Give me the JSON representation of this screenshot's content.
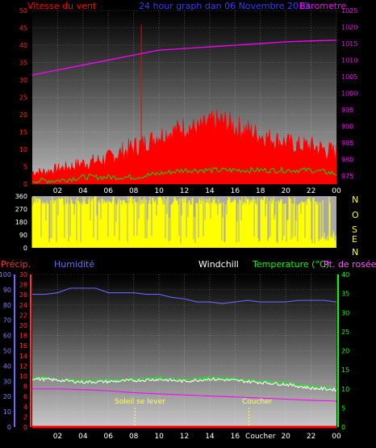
{
  "header": {
    "wind_label": "Vitesse du vent",
    "title": "24 hour graph dan   06 Novembre 2013",
    "baro_label": "Barometre"
  },
  "colors": {
    "wind": "#ff0000",
    "gust": "#ff0000",
    "wind_avg": "#00e000",
    "baro": "#ff00ff",
    "winddir": "#ffff00",
    "humidity": "#6666ff",
    "temperature": "#00ff00",
    "dewpoint": "#ff00ff",
    "windchill": "#ffffff",
    "precip": "#ff0000",
    "sun": "#ffff66"
  },
  "time_ticks": [
    "02",
    "04",
    "06",
    "08",
    "10",
    "12",
    "14",
    "16",
    "18",
    "20",
    "22",
    "00"
  ],
  "bottom_time_ticks": [
    "02",
    "04",
    "06",
    "08",
    "10",
    "12",
    "14",
    "16",
    "Coucher",
    "20",
    "22",
    "00"
  ],
  "labels": {
    "precip": "Précip.",
    "humidity": "Humidité",
    "windchill": "Windchill",
    "temperature": "Temperature (°C)",
    "dewpoint": "Pt. de rosée",
    "sunrise": "Soleil se lever",
    "sunset": "Coucher",
    "compass": [
      "N",
      "O",
      "S",
      "E",
      "N"
    ]
  },
  "chart_data": [
    {
      "type": "line",
      "title": "24 hour graph dan   06 Novembre 2013",
      "x_unit": "hour",
      "xlim": [
        0,
        24
      ],
      "y_left": {
        "label": "Vitesse du vent",
        "lim": [
          0,
          50
        ],
        "ticks": [
          0,
          5,
          10,
          15,
          20,
          25,
          30,
          35,
          40,
          45,
          50
        ]
      },
      "y_right": {
        "label": "Barometre",
        "lim": [
          972.5,
          1025
        ],
        "ticks": [
          975,
          980,
          985,
          990,
          995,
          1000,
          1005,
          1010,
          1015,
          1020,
          1025
        ]
      },
      "series": [
        {
          "name": "Vitesse du vent",
          "axis": "left",
          "x": [
            0,
            1,
            2,
            3,
            4,
            5,
            6,
            7,
            8,
            9,
            10,
            11,
            12,
            13,
            14,
            15,
            16,
            17,
            18,
            19,
            20,
            21,
            22,
            23,
            24
          ],
          "y": [
            2,
            2,
            3,
            3,
            4,
            4,
            5,
            6,
            7,
            9,
            11,
            12,
            13,
            13,
            14,
            14,
            13,
            12,
            11,
            10,
            9,
            8,
            8,
            7,
            6
          ],
          "gusts": [
            3,
            3,
            4,
            5,
            6,
            7,
            8,
            10,
            12,
            13,
            15,
            16,
            18,
            17,
            19,
            20,
            18,
            17,
            15,
            14,
            13,
            12,
            12,
            11,
            10
          ],
          "spike": {
            "x": 8.6,
            "y": 46
          }
        },
        {
          "name": "wind-avg",
          "axis": "left",
          "x": [
            0,
            2,
            4,
            6,
            8,
            10,
            12,
            14,
            16,
            18,
            20,
            22,
            24
          ],
          "y": [
            1,
            1,
            2,
            2,
            2,
            3,
            4,
            4,
            4,
            4,
            4,
            4,
            3
          ]
        },
        {
          "name": "Barometre",
          "axis": "right",
          "x": [
            0,
            2,
            4,
            6,
            8,
            10,
            12,
            14,
            16,
            18,
            20,
            22,
            24
          ],
          "y": [
            1005.5,
            1007,
            1008.5,
            1010,
            1011.5,
            1013,
            1013.5,
            1014,
            1014.5,
            1015,
            1015.5,
            1015.8,
            1016
          ]
        }
      ]
    },
    {
      "type": "bar",
      "title": "",
      "x_unit": "hour",
      "xlim": [
        0,
        24
      ],
      "y": {
        "lim": [
          0,
          360
        ],
        "ticks": [
          0,
          90,
          180,
          270,
          360
        ]
      },
      "right_labels": [
        "N",
        "O",
        "S",
        "E",
        "N"
      ]
    },
    {
      "type": "line",
      "title": "",
      "xlim": [
        0,
        24
      ],
      "y_precip": {
        "label": "Précip.",
        "lim": [
          0,
          30
        ],
        "ticks": [
          0,
          2,
          4,
          6,
          8,
          10,
          12,
          14,
          16,
          18,
          20,
          22,
          24,
          26,
          28,
          30
        ]
      },
      "y_humidity": {
        "label": "Humidité",
        "lim": [
          0,
          100
        ],
        "ticks": [
          0,
          10,
          20,
          30,
          40,
          50,
          60,
          70,
          80,
          90,
          100
        ]
      },
      "y_temp": {
        "label": "Temperature (°C)",
        "lim": [
          0,
          40
        ],
        "ticks": [
          0,
          5,
          10,
          15,
          20,
          25,
          30,
          35,
          40
        ]
      },
      "sunrise_hour": 8.1,
      "sunset_hour": 17.1,
      "series": [
        {
          "name": "Humidité",
          "axis": "humidity",
          "x": [
            0,
            1,
            2,
            3,
            4,
            5,
            6,
            7,
            8,
            9,
            10,
            11,
            12,
            13,
            14,
            15,
            16,
            17,
            18,
            19,
            20,
            21,
            22,
            23,
            24
          ],
          "y": [
            87,
            87,
            88,
            91,
            91,
            91,
            88,
            88,
            88,
            87,
            87,
            85,
            84,
            82,
            82,
            81,
            82,
            83,
            82,
            82,
            82,
            83,
            83,
            83,
            82
          ]
        },
        {
          "name": "Temperature (°C)",
          "axis": "temp",
          "x": [
            0,
            2,
            4,
            6,
            8,
            10,
            12,
            14,
            16,
            18,
            20,
            22,
            24
          ],
          "y": [
            13,
            12.5,
            12,
            12.3,
            12.5,
            12.8,
            12.3,
            13,
            12.5,
            12,
            11.5,
            10.5,
            10
          ]
        },
        {
          "name": "Pt. de rosée",
          "axis": "temp",
          "x": [
            0,
            2,
            4,
            6,
            8,
            10,
            12,
            14,
            16,
            18,
            20,
            22,
            24
          ],
          "y": [
            10,
            10,
            9.8,
            9.5,
            9,
            8.7,
            8.4,
            8.1,
            7.9,
            7.6,
            7.3,
            7,
            6.8
          ]
        },
        {
          "name": "Windchill",
          "axis": "temp",
          "x": [
            0,
            2,
            4,
            6,
            8,
            10,
            12,
            14,
            16,
            18,
            20,
            22,
            24
          ],
          "y": [
            12.7,
            12.3,
            11.8,
            11.9,
            12.2,
            12.5,
            12,
            12.6,
            12.2,
            11.7,
            11.2,
            10.2,
            9.8
          ]
        },
        {
          "name": "Précip.",
          "axis": "precip",
          "x": [
            0,
            24
          ],
          "y": [
            0,
            0
          ]
        }
      ]
    }
  ]
}
